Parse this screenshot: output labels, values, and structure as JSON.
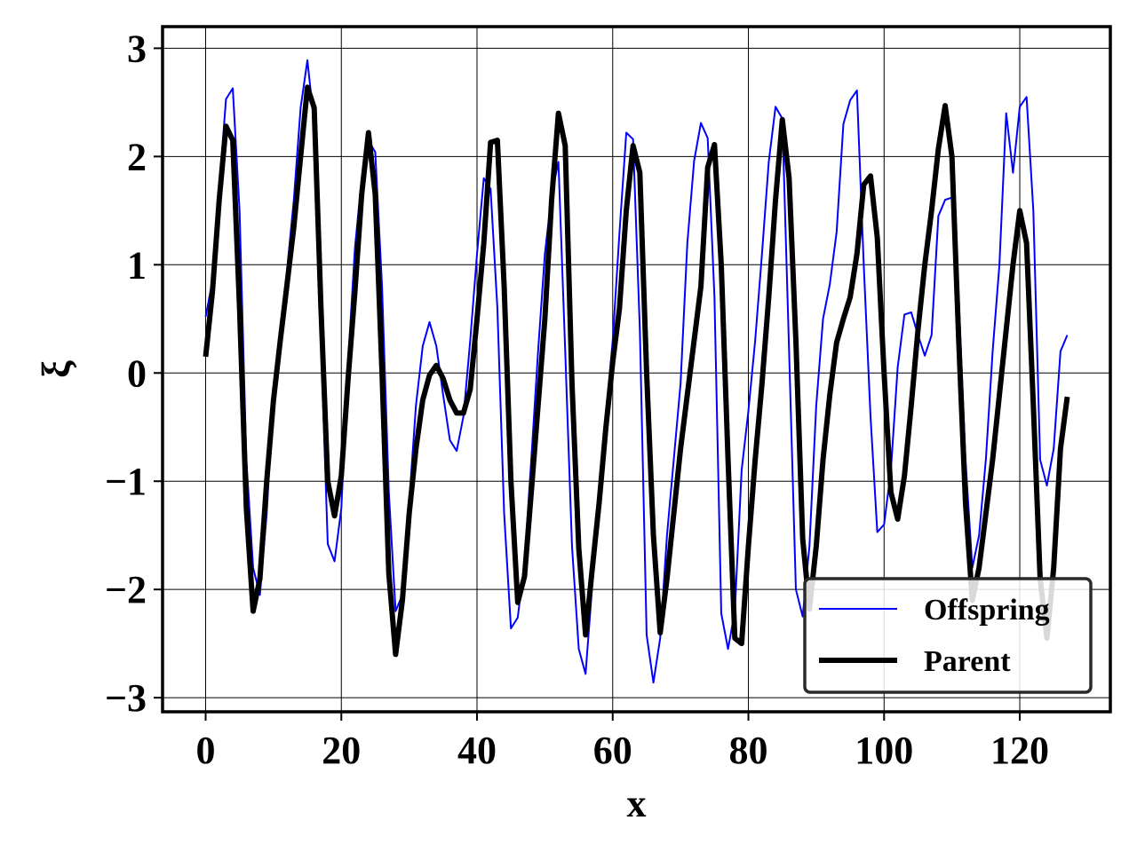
{
  "chart_data": {
    "type": "line",
    "title": "",
    "xlabel": "x",
    "ylabel": "ξ",
    "xlim": [
      -6.35,
      133.35
    ],
    "ylim": [
      -3.13,
      3.2
    ],
    "xticks": [
      0,
      20,
      40,
      60,
      80,
      100,
      120
    ],
    "xtick_labels": [
      "0",
      "20",
      "40",
      "60",
      "80",
      "100",
      "120"
    ],
    "yticks": [
      3,
      2,
      1,
      0,
      -1,
      -2,
      -3
    ],
    "ytick_labels": [
      "3",
      "2",
      "1",
      "0",
      "−1",
      "−2",
      "−3"
    ],
    "grid": true,
    "legend_position": "lower-right",
    "series": [
      {
        "name": "Offspring",
        "color": "#0000ff",
        "x": [
          0,
          1,
          2,
          3,
          4,
          5,
          6,
          7,
          8,
          9,
          10,
          11,
          12,
          13,
          14,
          15,
          16,
          17,
          18,
          19,
          20,
          21,
          22,
          23,
          24,
          25,
          26,
          27,
          28,
          29,
          30,
          31,
          32,
          33,
          34,
          35,
          36,
          37,
          38,
          39,
          40,
          41,
          42,
          43,
          44,
          45,
          46,
          47,
          48,
          49,
          50,
          51,
          52,
          53,
          54,
          55,
          56,
          57,
          58,
          59,
          60,
          61,
          62,
          63,
          64,
          65,
          66,
          67,
          68,
          69,
          70,
          71,
          72,
          73,
          74,
          75,
          76,
          77,
          78,
          79,
          80,
          81,
          82,
          83,
          84,
          85,
          86,
          87,
          88,
          89,
          90,
          91,
          92,
          93,
          94,
          95,
          96,
          97,
          98,
          99,
          100,
          101,
          102,
          103,
          104,
          105,
          106,
          107,
          108,
          109,
          110,
          111,
          112,
          113,
          114,
          115,
          116,
          117,
          118,
          119,
          120,
          121,
          122,
          123,
          124,
          125,
          126,
          127
        ],
        "values": [
          0.52,
          0.85,
          1.7,
          2.53,
          2.63,
          1.5,
          -0.8,
          -1.8,
          -2.05,
          -1.3,
          -0.2,
          0.4,
          0.95,
          1.6,
          2.45,
          2.89,
          2.3,
          0.3,
          -1.58,
          -1.74,
          -1.25,
          0.1,
          1.15,
          1.8,
          2.15,
          2.04,
          0.8,
          -1.1,
          -2.2,
          -2.05,
          -1.2,
          -0.3,
          0.25,
          0.47,
          0.25,
          -0.2,
          -0.62,
          -0.72,
          -0.4,
          0.3,
          1.1,
          1.8,
          1.7,
          0.6,
          -1.3,
          -2.36,
          -2.26,
          -1.75,
          -0.8,
          0.2,
          1.1,
          1.65,
          1.95,
          0.2,
          -1.6,
          -2.55,
          -2.78,
          -1.95,
          -1.2,
          -0.4,
          0.3,
          1.3,
          2.22,
          2.16,
          0.4,
          -2.42,
          -2.86,
          -2.45,
          -1.5,
          -0.8,
          -0.1,
          1.2,
          1.96,
          2.31,
          2.17,
          0.7,
          -2.22,
          -2.55,
          -2.2,
          -0.9,
          -0.35,
          0.3,
          1.1,
          1.95,
          2.46,
          2.35,
          0.2,
          -2.0,
          -2.25,
          -1.6,
          -0.3,
          0.5,
          0.82,
          1.3,
          2.3,
          2.52,
          2.61,
          1.0,
          -0.4,
          -1.47,
          -1.4,
          -0.9,
          0.05,
          0.54,
          0.56,
          0.35,
          0.16,
          0.35,
          1.45,
          1.6,
          1.62,
          0.7,
          -0.8,
          -1.8,
          -1.5,
          -0.8,
          0.2,
          1.0,
          2.4,
          1.85,
          2.46,
          2.55,
          1.5,
          -0.8,
          -1.04,
          -0.7,
          0.2,
          0.35
        ]
      },
      {
        "name": "Parent",
        "color": "#000000",
        "x": [
          0,
          1,
          2,
          3,
          4,
          5,
          6,
          7,
          8,
          9,
          10,
          11,
          12,
          13,
          14,
          15,
          16,
          17,
          18,
          19,
          20,
          21,
          22,
          23,
          24,
          25,
          26,
          27,
          28,
          29,
          30,
          31,
          32,
          33,
          34,
          35,
          36,
          37,
          38,
          39,
          40,
          41,
          42,
          43,
          44,
          45,
          46,
          47,
          48,
          49,
          50,
          51,
          52,
          53,
          54,
          55,
          56,
          57,
          58,
          59,
          60,
          61,
          62,
          63,
          64,
          65,
          66,
          67,
          68,
          69,
          70,
          71,
          72,
          73,
          74,
          75,
          76,
          77,
          78,
          79,
          80,
          81,
          82,
          83,
          84,
          85,
          86,
          87,
          88,
          89,
          90,
          91,
          92,
          93,
          94,
          95,
          96,
          97,
          98,
          99,
          100,
          101,
          102,
          103,
          104,
          105,
          106,
          107,
          108,
          109,
          110,
          111,
          112,
          113,
          114,
          115,
          116,
          117,
          118,
          119,
          120,
          121,
          122,
          123,
          124,
          125,
          126,
          127
        ],
        "values": [
          0.15,
          0.75,
          1.6,
          2.28,
          2.15,
          0.6,
          -1.25,
          -2.2,
          -1.9,
          -1.0,
          -0.25,
          0.3,
          0.82,
          1.35,
          2.0,
          2.64,
          2.45,
          0.6,
          -1.0,
          -1.32,
          -0.95,
          -0.05,
          0.75,
          1.65,
          2.22,
          1.65,
          0.0,
          -1.85,
          -2.6,
          -2.1,
          -1.3,
          -0.7,
          -0.25,
          -0.02,
          0.07,
          -0.05,
          -0.25,
          -0.37,
          -0.37,
          -0.15,
          0.5,
          1.2,
          2.13,
          2.15,
          0.8,
          -1.0,
          -2.12,
          -1.88,
          -1.1,
          -0.3,
          0.5,
          1.6,
          2.4,
          2.1,
          -0.1,
          -1.62,
          -2.42,
          -1.8,
          -1.2,
          -0.5,
          0.1,
          0.6,
          1.5,
          2.1,
          1.85,
          0.0,
          -1.5,
          -2.4,
          -1.9,
          -1.3,
          -0.7,
          -0.2,
          0.3,
          0.8,
          1.9,
          2.11,
          1.0,
          -0.8,
          -2.45,
          -2.5,
          -1.6,
          -0.8,
          -0.1,
          0.7,
          1.6,
          2.34,
          1.8,
          0.3,
          -1.53,
          -2.18,
          -1.6,
          -0.8,
          -0.2,
          0.28,
          0.5,
          0.7,
          1.1,
          1.74,
          1.82,
          1.25,
          0.0,
          -1.1,
          -1.35,
          -0.95,
          -0.3,
          0.4,
          1.0,
          1.5,
          2.07,
          2.47,
          2.0,
          0.3,
          -1.2,
          -2.1,
          -1.8,
          -1.3,
          -0.8,
          -0.2,
          0.4,
          1.0,
          1.5,
          1.2,
          -0.3,
          -1.9,
          -2.45,
          -1.8,
          -0.7,
          -0.22
        ]
      }
    ]
  }
}
